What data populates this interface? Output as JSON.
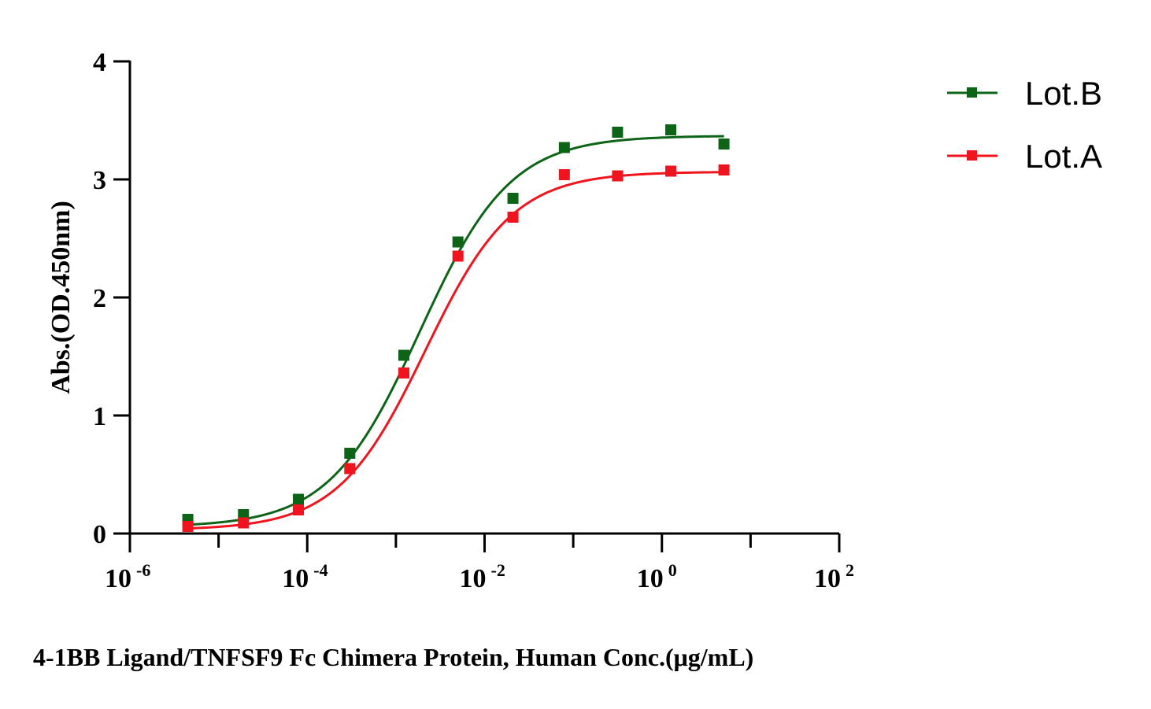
{
  "chart_data": {
    "type": "scatter",
    "xscale": "log10",
    "xlim_log10": [
      -6,
      2
    ],
    "ylim": [
      0,
      4
    ],
    "x_ticks": [
      {
        "base": "10",
        "exp": "-6"
      },
      {
        "base": "10",
        "exp": "-4"
      },
      {
        "base": "10",
        "exp": "-2"
      },
      {
        "base": "10",
        "exp": "0"
      },
      {
        "base": "10",
        "exp": "2"
      }
    ],
    "y_ticks": [
      "0",
      "1",
      "2",
      "3",
      "4"
    ],
    "ylabel": "Abs.(OD.450nm)",
    "xlabel": "4-1BB Ligand/TNFSF9 Fc Chimera Protein, Human  Conc.(μg/mL)",
    "legend_position": "top-right",
    "series": [
      {
        "name": "Lot.B",
        "color": "#0d6417",
        "x": [
          4.5e-06,
          1.91e-05,
          7.94e-05,
          0.000302,
          0.00123,
          0.00501,
          0.0209,
          0.0794,
          0.316,
          1.26,
          5.01
        ],
        "y": [
          0.12,
          0.16,
          0.29,
          0.68,
          1.51,
          2.47,
          2.84,
          3.27,
          3.4,
          3.42,
          3.3
        ],
        "fit": {
          "bottom": 0.055,
          "top": 3.37,
          "log_ec50": -2.73,
          "hill": 0.85
        }
      },
      {
        "name": "Lot.A",
        "color": "#f0141e",
        "x": [
          4.5e-06,
          1.91e-05,
          7.94e-05,
          0.000302,
          0.00123,
          0.00501,
          0.0209,
          0.0794,
          0.316,
          1.26,
          5.01
        ],
        "y": [
          0.06,
          0.09,
          0.2,
          0.55,
          1.36,
          2.35,
          2.68,
          3.04,
          3.03,
          3.07,
          3.08
        ],
        "fit": {
          "bottom": 0.03,
          "top": 3.065,
          "log_ec50": -2.67,
          "hill": 0.88
        }
      }
    ]
  }
}
